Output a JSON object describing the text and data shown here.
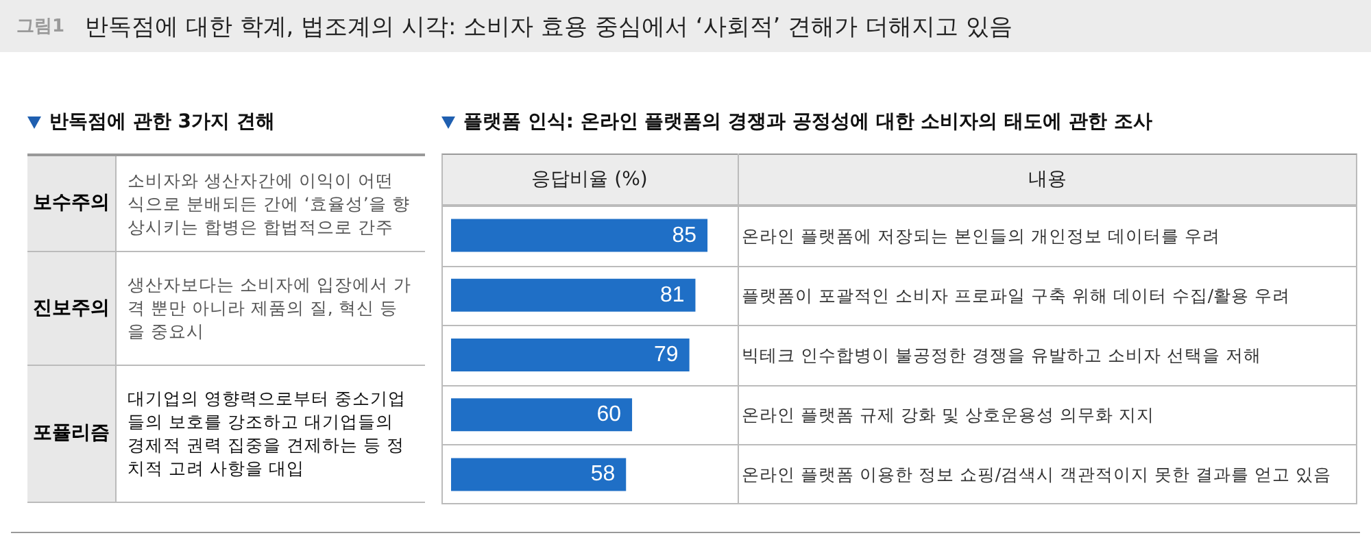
{
  "chart_data": [
    {
      "type": "other",
      "title": "반독점에 대한 학계, 법조계의 시각: 소비자 효용 중심에서 ‘사회적’ 견해가 더해지고 있음",
      "subtitle": "반독점에 관한 3가지 견해",
      "annotations": [
        "그림1",
        "보수주의",
        "소비자와 생산자간에 이익이 어떤 식으로 분배되든 간에 ‘효율성’을 향상시키는 합병은 합법적으로 간주",
        "진보주의",
        "생산자보다는 소비자에 입장에서 가격 뿐만 아니라 제품의 질, 혁신 등을 중요시",
        "포퓰리즘",
        "대기업의 영향력으로부터 중소기업들의 보호를 강조하고 대기업들의 경제적 권력 집중을 견제하는 등 정치적 고려 사항을 대입"
      ]
    },
    {
      "type": "bar",
      "orientation": "horizontal",
      "title": "플랫폼 인식: 온라인 플랫폼의 경쟁과 공정성에 대한 소비자의 태도에 관한 조사",
      "xlabel": "응답비율 (%)",
      "ylabel": "내용",
      "categories": [
        "온라인 플랫폼에 저장되는 본인들의 개인정보 데이터를 우려",
        "플랫폼이 포괄적인 소비자 프로파일 구축 위해 데이터 수집/활용 우려",
        "빅테크 인수합병이 불공정한 경쟁을 유발하고 소비자 선택을 저해",
        "온라인 플랫폼 규제 강화 및 상호운용성 의무화 지지",
        "온라인 플랫폼 이용한 정보 쇼핑/검색시 객관적이지 못한 결과를 얻고 있음"
      ],
      "values": [
        85,
        81,
        79,
        60,
        58
      ],
      "color": "#1f6fc6",
      "data_labels": true
    }
  ]
}
